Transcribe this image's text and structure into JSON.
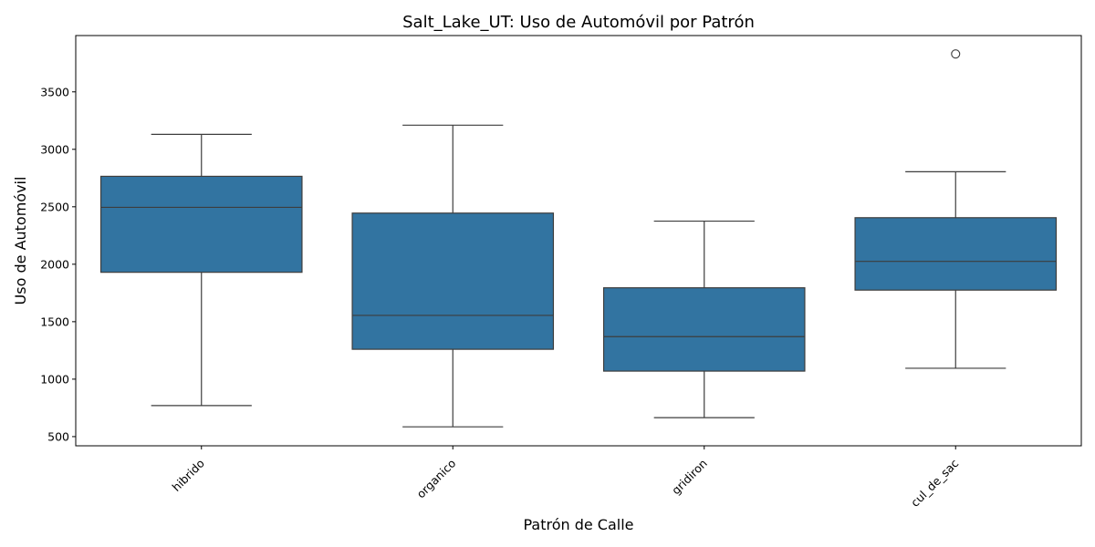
{
  "chart_data": {
    "type": "boxplot",
    "title": "Salt_Lake_UT: Uso de Automóvil por Patrón",
    "xlabel": "Patrón de Calle",
    "ylabel": "Uso de Automóvil",
    "categories": [
      "hibrido",
      "organico",
      "gridiron",
      "cul_de_sac"
    ],
    "ylim": [
      420,
      3990
    ],
    "yticks": [
      500,
      1000,
      1500,
      2000,
      2500,
      3000,
      3500
    ],
    "grid": false,
    "box_color": "#3274a1",
    "line_color": "#3d3d3d",
    "boxes": [
      {
        "category": "hibrido",
        "whisker_low": 770,
        "q1": 1930,
        "median": 2495,
        "q3": 2765,
        "whisker_high": 3130,
        "outliers": []
      },
      {
        "category": "organico",
        "whisker_low": 585,
        "q1": 1260,
        "median": 1555,
        "q3": 2445,
        "whisker_high": 3210,
        "outliers": []
      },
      {
        "category": "gridiron",
        "whisker_low": 665,
        "q1": 1070,
        "median": 1370,
        "q3": 1795,
        "whisker_high": 2375,
        "outliers": []
      },
      {
        "category": "cul_de_sac",
        "whisker_low": 1095,
        "q1": 1775,
        "median": 2025,
        "q3": 2405,
        "whisker_high": 2805,
        "outliers": [
          3830
        ]
      }
    ]
  }
}
